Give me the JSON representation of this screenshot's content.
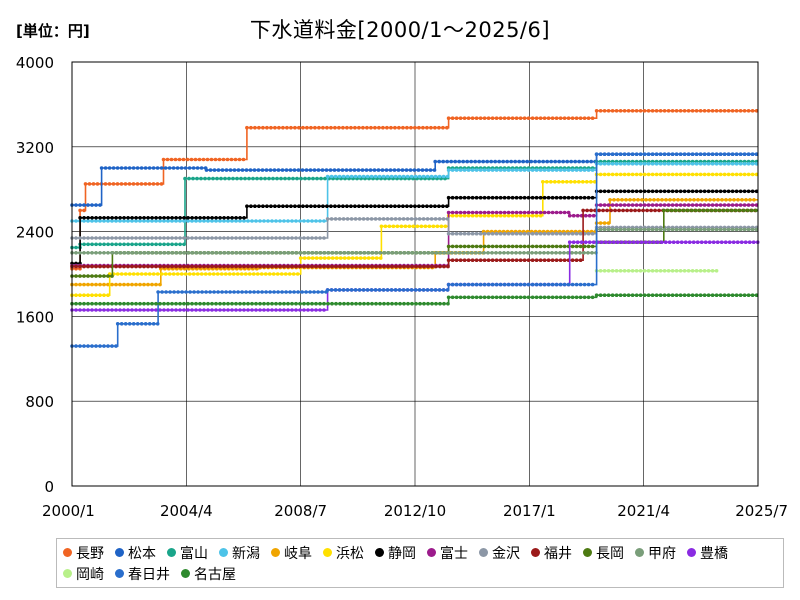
{
  "title": "下水道料金[2000/1～2025/6]",
  "unit_label": "[単位：円]",
  "chart_data": {
    "type": "line",
    "title": "下水道料金[2000/1～2025/6]",
    "unit": "[単位：円]",
    "xlabel": "",
    "ylabel": "",
    "xlim": [
      2000.0,
      2025.5
    ],
    "ylim": [
      0,
      4000
    ],
    "x_ticks": [
      {
        "label": "2000/1",
        "value": 2000.0
      },
      {
        "label": "2004/4",
        "value": 2003.25
      },
      {
        "label": "2008/7",
        "value": 2006.5
      },
      {
        "label": "2012/10",
        "value": 2009.75
      },
      {
        "label": "2017/1",
        "value": 2013.0
      },
      {
        "label": "2021/4",
        "value": 2016.25
      },
      {
        "label": "2025/7",
        "value": 2019.5
      }
    ],
    "y_ticks": [
      0,
      800,
      1600,
      2400,
      3200,
      4000
    ],
    "grid": true,
    "legend_position": "bottom",
    "series": [
      {
        "name": "長野",
        "color": "#f06423",
        "steps": [
          [
            2000.0,
            2050
          ],
          [
            2000.3,
            2600
          ],
          [
            2000.5,
            2850
          ],
          [
            2003.4,
            3080
          ],
          [
            2006.5,
            3380
          ],
          [
            2014.0,
            3470
          ],
          [
            2019.5,
            3540
          ],
          [
            2025.5,
            3540
          ]
        ]
      },
      {
        "name": "松本",
        "color": "#1f63c6",
        "steps": [
          [
            2000.0,
            2650
          ],
          [
            2001.1,
            3000
          ],
          [
            2005.0,
            2980
          ],
          [
            2013.5,
            3060
          ],
          [
            2019.5,
            3130
          ],
          [
            2025.5,
            3130
          ]
        ]
      },
      {
        "name": "富山",
        "color": "#1aa58a",
        "steps": [
          [
            2000.0,
            2250
          ],
          [
            2000.3,
            2280
          ],
          [
            2004.2,
            2900
          ],
          [
            2014.0,
            3000
          ],
          [
            2019.5,
            3060
          ],
          [
            2025.5,
            3060
          ]
        ]
      },
      {
        "name": "新潟",
        "color": "#4dc3e8",
        "steps": [
          [
            2000.0,
            2500
          ],
          [
            2009.5,
            2920
          ],
          [
            2014.0,
            2980
          ],
          [
            2019.5,
            3040
          ],
          [
            2025.5,
            3040
          ]
        ]
      },
      {
        "name": "岐阜",
        "color": "#f0a500",
        "steps": [
          [
            2000.0,
            1900
          ],
          [
            2003.3,
            2050
          ],
          [
            2007.0,
            2060
          ],
          [
            2013.5,
            2200
          ],
          [
            2015.3,
            2400
          ],
          [
            2019.5,
            2480
          ],
          [
            2020.0,
            2700
          ],
          [
            2025.5,
            2700
          ]
        ]
      },
      {
        "name": "浜松",
        "color": "#ffe000",
        "steps": [
          [
            2000.0,
            1800
          ],
          [
            2001.4,
            2000
          ],
          [
            2008.5,
            2150
          ],
          [
            2011.5,
            2450
          ],
          [
            2014.0,
            2550
          ],
          [
            2017.5,
            2870
          ],
          [
            2019.5,
            2940
          ],
          [
            2025.5,
            2940
          ]
        ]
      },
      {
        "name": "静岡",
        "color": "#000000",
        "steps": [
          [
            2000.0,
            2100
          ],
          [
            2000.3,
            2530
          ],
          [
            2006.5,
            2640
          ],
          [
            2014.0,
            2720
          ],
          [
            2019.5,
            2780
          ],
          [
            2025.5,
            2780
          ]
        ]
      },
      {
        "name": "富士",
        "color": "#9c1b8c",
        "steps": [
          [
            2000.0,
            2080
          ],
          [
            2014.0,
            2580
          ],
          [
            2018.5,
            2550
          ],
          [
            2019.5,
            2650
          ],
          [
            2025.5,
            2650
          ]
        ]
      },
      {
        "name": "金沢",
        "color": "#8c97a6",
        "steps": [
          [
            2000.0,
            2340
          ],
          [
            2009.5,
            2520
          ],
          [
            2014.0,
            2380
          ],
          [
            2019.5,
            2440
          ],
          [
            2025.5,
            2440
          ]
        ]
      },
      {
        "name": "福井",
        "color": "#9b1a1a",
        "steps": [
          [
            2000.0,
            2070
          ],
          [
            2014.0,
            2130
          ],
          [
            2019.0,
            2600
          ],
          [
            2025.5,
            2600
          ]
        ]
      },
      {
        "name": "長岡",
        "color": "#4d7a12",
        "steps": [
          [
            2000.0,
            1980
          ],
          [
            2001.5,
            2200
          ],
          [
            2014.0,
            2260
          ],
          [
            2019.5,
            2300
          ],
          [
            2022.0,
            2600
          ],
          [
            2025.5,
            2600
          ]
        ]
      },
      {
        "name": "甲府",
        "color": "#7a9e7a",
        "steps": [
          [
            2000.0,
            2200
          ],
          [
            2019.5,
            2420
          ],
          [
            2025.5,
            2420
          ]
        ]
      },
      {
        "name": "豊橋",
        "color": "#8a2be2",
        "steps": [
          [
            2000.0,
            1660
          ],
          [
            2009.5,
            1850
          ],
          [
            2014.0,
            1900
          ],
          [
            2018.5,
            2300
          ],
          [
            2025.5,
            2300
          ]
        ]
      },
      {
        "name": "岡崎",
        "color": "#b8f08a",
        "steps": [
          [
            2019.5,
            2030
          ],
          [
            2024.0,
            2030
          ]
        ]
      },
      {
        "name": "春日井",
        "color": "#2a6ecc",
        "steps": [
          [
            2000.0,
            1320
          ],
          [
            2001.7,
            1530
          ],
          [
            2003.2,
            1830
          ],
          [
            2009.5,
            1850
          ],
          [
            2014.0,
            1900
          ],
          [
            2019.5,
            3130
          ],
          [
            2025.5,
            3130
          ]
        ]
      },
      {
        "name": "名古屋",
        "color": "#2e8a2e",
        "steps": [
          [
            2000.0,
            1720
          ],
          [
            2014.0,
            1780
          ],
          [
            2019.5,
            1800
          ],
          [
            2025.5,
            1800
          ]
        ]
      }
    ]
  }
}
